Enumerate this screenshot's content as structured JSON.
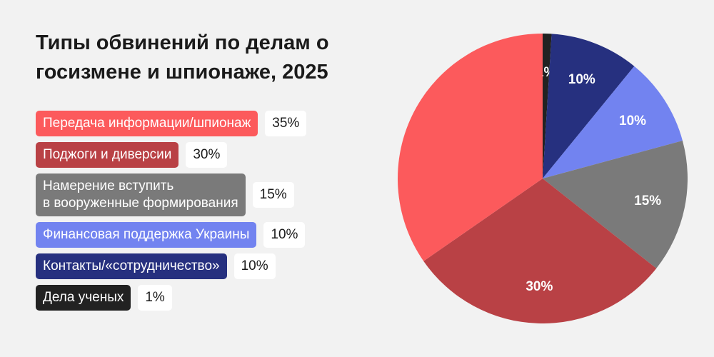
{
  "chart_data": {
    "type": "pie",
    "title": "Типы обвинений по делам о госизмене и шпионаже, 2025",
    "slices": [
      {
        "label": "Передача информации/шпионаж",
        "value": 35,
        "value_label": "35%",
        "color": "#fc5a5c"
      },
      {
        "label": "Поджоги и диверсии",
        "value": 30,
        "value_label": "30%",
        "color": "#b94145"
      },
      {
        "label": "Намерение вступить\nв вооруженные формирования",
        "value": 15,
        "value_label": "15%",
        "color": "#7a7a7a"
      },
      {
        "label": "Финансовая поддержка Украины",
        "value": 10,
        "value_label": "10%",
        "color": "#7283f0"
      },
      {
        "label": "Контакты/«сотрудничество»",
        "value": 10,
        "value_label": "10%",
        "color": "#26307f"
      },
      {
        "label": "Дела ученых",
        "value": 1,
        "value_label": "1%",
        "color": "#222222"
      }
    ],
    "pie_order": [
      5,
      4,
      3,
      2,
      1,
      0
    ],
    "pie_slice_labels_shown": [
      false,
      true,
      true,
      true,
      true,
      true
    ]
  }
}
